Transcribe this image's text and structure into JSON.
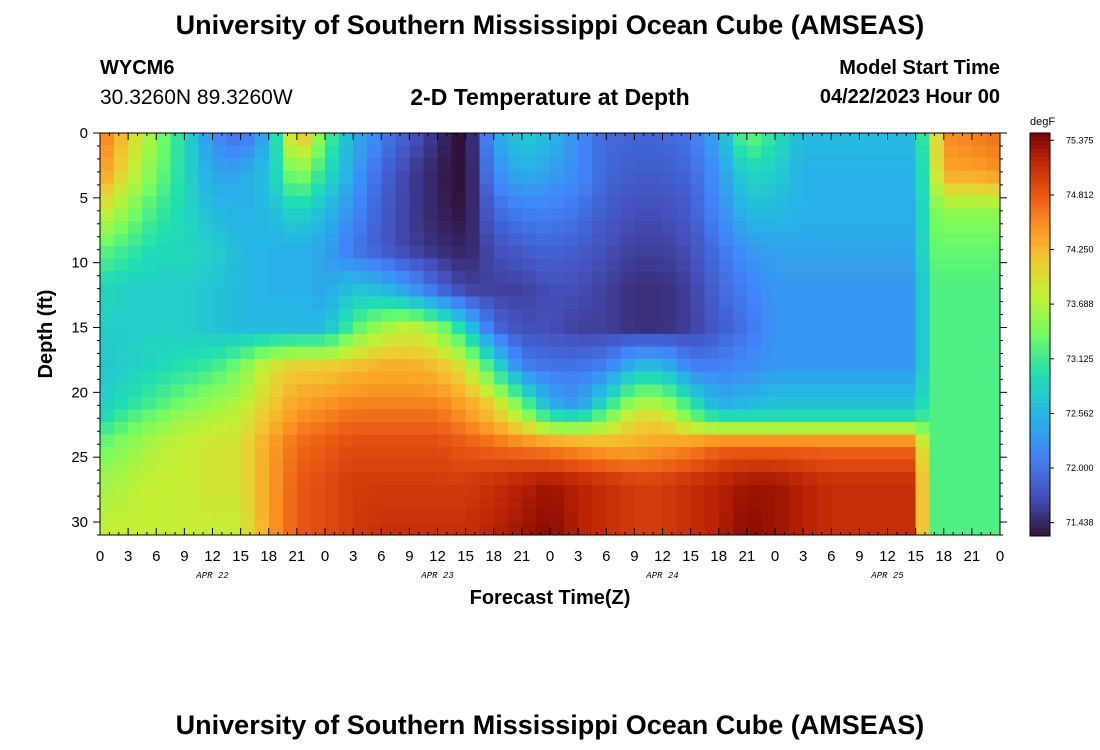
{
  "header": {
    "title": "University of Southern Mississippi Ocean Cube (AMSEAS)",
    "station_id": "WYCM6",
    "coords": "30.3260N  89.3260W",
    "plot_title": "2-D Temperature at Depth",
    "model_start_label": "Model Start Time",
    "model_start_value": "04/22/2023 Hour 00"
  },
  "footer": {
    "title": "University of Southern Mississippi Ocean Cube (AMSEAS)"
  },
  "chart_data": {
    "type": "heatmap",
    "xlabel": "Forecast Time(Z)",
    "ylabel": "Depth (ft)",
    "x_tick_labels": [
      "0",
      "3",
      "6",
      "9",
      "12",
      "15",
      "18",
      "21",
      "0",
      "3",
      "6",
      "9",
      "12",
      "15",
      "18",
      "21",
      "0",
      "3",
      "6",
      "9",
      "12",
      "15",
      "18",
      "21",
      "0",
      "3",
      "6",
      "9",
      "12",
      "15",
      "18",
      "21",
      "0"
    ],
    "x_date_labels": [
      "APR 22",
      "APR 23",
      "APR 24",
      "APR 25"
    ],
    "x_range_hours": [
      0,
      96
    ],
    "y_ticks": [
      0,
      5,
      10,
      15,
      20,
      25,
      30
    ],
    "y_range_ft": [
      0,
      31
    ],
    "y_inverted": true,
    "colorbar": {
      "unit": "degF",
      "ticks": [
        "75.375",
        "74.812",
        "74.250",
        "73.688",
        "73.125",
        "72.562",
        "72.000",
        "71.438"
      ],
      "vmin": 71.3,
      "vmax": 75.45,
      "colormap": "turbo"
    },
    "depth_levels_ft": [
      0,
      3,
      6,
      9,
      12,
      15,
      18,
      21,
      22,
      24,
      27,
      31
    ],
    "time_hours": [
      0,
      3,
      6,
      9,
      12,
      15,
      18,
      21,
      24,
      27,
      30,
      33,
      36,
      39,
      42,
      45,
      48,
      51,
      54,
      57,
      60,
      63,
      66,
      69,
      72,
      75,
      78,
      81,
      84,
      87,
      88.5,
      90,
      93,
      96
    ],
    "temperature_degF": [
      [
        74.7,
        74.1,
        73.5,
        72.9,
        72.2,
        71.9,
        72.5,
        74.4,
        73.3,
        72.5,
        72.1,
        71.8,
        71.5,
        71.2,
        72.4,
        72.8,
        72.6,
        72.2,
        71.9,
        71.9,
        71.9,
        72.0,
        72.5,
        73.4,
        73.0,
        72.6,
        72.6,
        72.6,
        72.6,
        72.6,
        73.5,
        74.5,
        74.6,
        74.7
      ],
      [
        74.5,
        73.9,
        73.4,
        72.9,
        72.4,
        72.4,
        72.7,
        73.6,
        73.0,
        72.4,
        71.9,
        71.6,
        71.4,
        71.2,
        72.2,
        72.5,
        72.4,
        72.2,
        71.9,
        71.8,
        71.8,
        71.9,
        72.3,
        72.9,
        72.8,
        72.5,
        72.5,
        72.5,
        72.5,
        72.5,
        73.4,
        74.4,
        74.4,
        74.5
      ],
      [
        73.9,
        73.5,
        73.1,
        72.9,
        72.6,
        72.5,
        72.6,
        72.9,
        72.6,
        72.2,
        71.8,
        71.6,
        71.4,
        71.3,
        71.9,
        72.1,
        72.1,
        72.0,
        71.8,
        71.7,
        71.7,
        71.8,
        72.2,
        72.6,
        72.6,
        72.5,
        72.5,
        72.5,
        72.5,
        72.5,
        73.3,
        73.5,
        73.5,
        73.5
      ],
      [
        73.3,
        73.1,
        72.9,
        72.9,
        72.8,
        72.6,
        72.5,
        72.5,
        72.4,
        72.0,
        71.8,
        71.6,
        71.5,
        71.4,
        71.7,
        71.8,
        71.9,
        71.8,
        71.7,
        71.6,
        71.6,
        71.7,
        72.0,
        72.3,
        72.4,
        72.4,
        72.4,
        72.4,
        72.4,
        72.4,
        73.3,
        73.3,
        73.3,
        73.3
      ],
      [
        72.9,
        72.8,
        72.8,
        72.8,
        72.7,
        72.6,
        72.5,
        72.5,
        72.4,
        72.7,
        72.6,
        72.3,
        71.9,
        71.6,
        71.6,
        71.6,
        71.7,
        71.7,
        71.6,
        71.5,
        71.5,
        71.6,
        71.9,
        72.1,
        72.3,
        72.3,
        72.3,
        72.3,
        72.3,
        72.3,
        73.2,
        73.2,
        73.2,
        73.2
      ],
      [
        72.8,
        72.8,
        72.8,
        72.8,
        72.7,
        72.6,
        72.6,
        72.6,
        72.6,
        73.2,
        73.6,
        73.8,
        73.5,
        72.8,
        71.9,
        71.7,
        71.7,
        71.6,
        71.6,
        71.5,
        71.5,
        71.6,
        71.8,
        72.0,
        72.3,
        72.3,
        72.3,
        72.3,
        72.3,
        72.3,
        73.2,
        73.2,
        73.2,
        73.2
      ],
      [
        72.7,
        72.8,
        72.9,
        73.0,
        73.1,
        73.4,
        73.9,
        74.1,
        74.1,
        74.2,
        74.3,
        74.3,
        74.2,
        73.9,
        73.0,
        72.1,
        72.0,
        72.0,
        72.1,
        72.6,
        72.6,
        72.1,
        72.1,
        72.2,
        72.3,
        72.3,
        72.3,
        72.3,
        72.3,
        72.3,
        73.2,
        73.2,
        73.2,
        73.2
      ],
      [
        72.8,
        73.0,
        73.2,
        73.4,
        73.6,
        73.7,
        74.1,
        74.4,
        74.5,
        74.6,
        74.6,
        74.6,
        74.6,
        74.4,
        74.1,
        73.4,
        72.5,
        72.3,
        73.0,
        73.7,
        73.7,
        73.1,
        72.5,
        72.6,
        72.7,
        72.7,
        72.7,
        72.7,
        72.7,
        72.7,
        73.2,
        73.2,
        73.2,
        73.2
      ],
      [
        72.9,
        73.2,
        73.4,
        73.6,
        73.7,
        73.8,
        74.2,
        74.5,
        74.6,
        74.7,
        74.7,
        74.7,
        74.7,
        74.5,
        74.2,
        73.7,
        73.1,
        73.0,
        73.4,
        74.0,
        74.0,
        73.4,
        73.0,
        73.0,
        73.0,
        73.0,
        73.0,
        73.0,
        73.0,
        73.0,
        73.2,
        73.2,
        73.2,
        73.2
      ],
      [
        73.3,
        73.5,
        73.7,
        73.8,
        73.9,
        73.9,
        74.4,
        74.7,
        74.8,
        74.9,
        74.9,
        74.9,
        74.9,
        74.8,
        74.7,
        74.6,
        74.5,
        74.4,
        74.3,
        74.3,
        74.4,
        74.5,
        74.7,
        74.7,
        74.7,
        74.7,
        74.7,
        74.7,
        74.7,
        74.7,
        73.2,
        73.2,
        73.2,
        73.2
      ],
      [
        73.6,
        73.7,
        73.8,
        73.8,
        73.9,
        73.9,
        74.4,
        74.8,
        74.9,
        75.0,
        75.0,
        75.0,
        75.0,
        75.0,
        75.1,
        75.2,
        75.3,
        75.2,
        75.1,
        75.0,
        75.0,
        75.1,
        75.2,
        75.3,
        75.3,
        75.2,
        75.1,
        75.1,
        75.1,
        75.1,
        73.2,
        73.2,
        73.2,
        73.2
      ],
      [
        73.8,
        73.8,
        73.8,
        73.8,
        73.8,
        73.8,
        74.4,
        74.8,
        74.9,
        75.0,
        75.1,
        75.1,
        75.1,
        75.1,
        75.2,
        75.3,
        75.4,
        75.2,
        75.1,
        75.0,
        75.0,
        75.1,
        75.2,
        75.4,
        75.3,
        75.2,
        75.1,
        75.1,
        75.1,
        75.1,
        73.2,
        73.2,
        73.2,
        73.2
      ]
    ]
  }
}
